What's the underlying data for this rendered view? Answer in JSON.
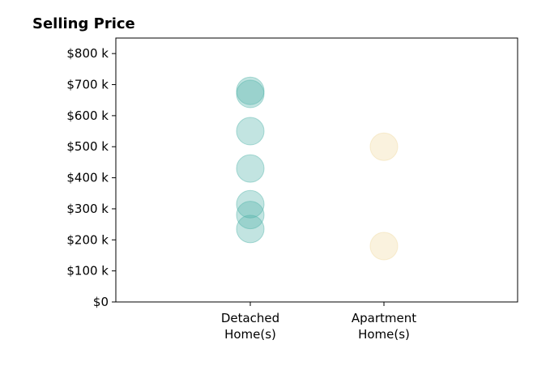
{
  "chart_data": {
    "type": "scatter",
    "title": "Selling Price",
    "xlabel": "",
    "ylabel": "",
    "y_ticks": [
      "$0",
      "$100 k",
      "$200 k",
      "$300 k",
      "$400 k",
      "$500 k",
      "$600 k",
      "$700 k",
      "$800 k"
    ],
    "ylim": [
      0,
      850
    ],
    "y_unit": "thousands of dollars",
    "categories": [
      {
        "line1": "Detached",
        "line2": "Home(s)"
      },
      {
        "line1": "Apartment",
        "line2": "Home(s)"
      }
    ],
    "grid": false,
    "series": [
      {
        "category_index": 0,
        "color": "#4fb3a9",
        "values": [
          680,
          670,
          550,
          430,
          315,
          280,
          235
        ]
      },
      {
        "category_index": 1,
        "color": "#f0d9a0",
        "values": [
          500,
          180
        ]
      }
    ]
  }
}
